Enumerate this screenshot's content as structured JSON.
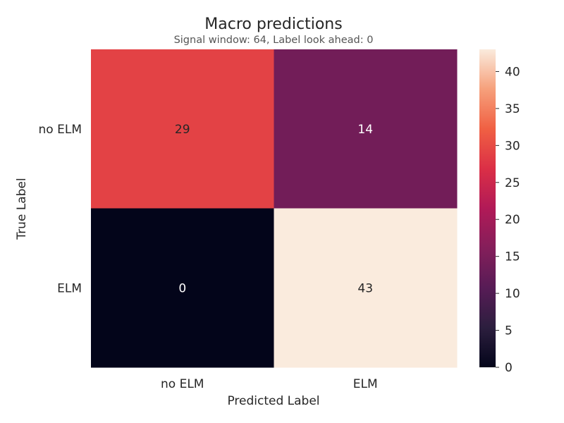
{
  "chart_data": {
    "type": "heatmap",
    "title": "Macro predictions",
    "subtitle": "Signal window: 64, Label look ahead: 0",
    "xlabel": "Predicted Label",
    "ylabel": "True Label",
    "x_categories": [
      "no ELM",
      "ELM"
    ],
    "y_categories": [
      "no ELM",
      "ELM"
    ],
    "values": [
      [
        29,
        14
      ],
      [
        0,
        43
      ]
    ],
    "colorbar": {
      "min": 0,
      "max": 43,
      "ticks": [
        "0",
        "5",
        "10",
        "15",
        "20",
        "25",
        "30",
        "35",
        "40"
      ],
      "colormap": "rocket"
    },
    "grid": false,
    "legend": "colorbar-right"
  }
}
